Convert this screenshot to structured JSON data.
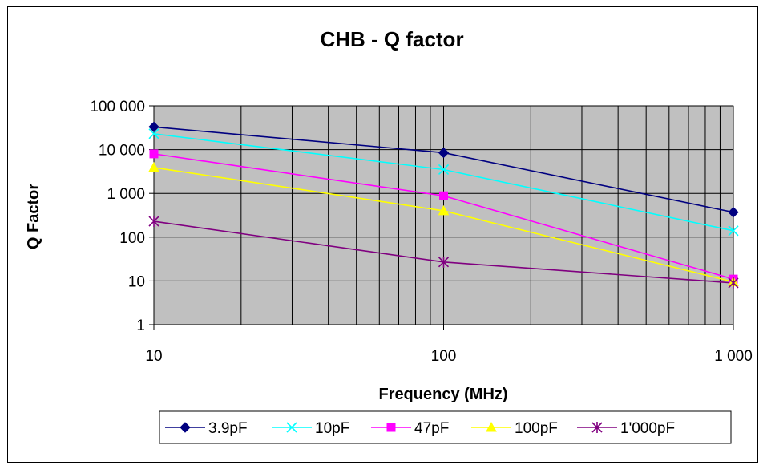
{
  "chart_data": {
    "type": "line",
    "title": "CHB - Q factor",
    "xlabel": "Frequency (MHz)",
    "ylabel": "Q Factor",
    "x_scale": "log",
    "y_scale": "log",
    "xlim": [
      10,
      1000
    ],
    "ylim": [
      1,
      100000
    ],
    "x_ticks": [
      {
        "value": 10,
        "label": "10"
      },
      {
        "value": 100,
        "label": "100"
      },
      {
        "value": 1000,
        "label": "1 000"
      }
    ],
    "y_ticks": [
      {
        "value": 1,
        "label": "1"
      },
      {
        "value": 10,
        "label": "10"
      },
      {
        "value": 100,
        "label": "100"
      },
      {
        "value": 1000,
        "label": "1 000"
      },
      {
        "value": 10000,
        "label": "10 000"
      },
      {
        "value": 100000,
        "label": "100 000"
      }
    ],
    "grid": true,
    "plot_background": "#c0c0c0",
    "legend_position": "bottom",
    "x": [
      10,
      100,
      1000
    ],
    "series": [
      {
        "name": "3.9pF",
        "color": "#000080",
        "marker": "diamond",
        "values": [
          33000,
          8500,
          370
        ]
      },
      {
        "name": "10pF",
        "color": "#00ffff",
        "marker": "x",
        "values": [
          23000,
          3500,
          140
        ]
      },
      {
        "name": "47pF",
        "color": "#ff00ff",
        "marker": "square",
        "values": [
          8000,
          880,
          11
        ]
      },
      {
        "name": "100pF",
        "color": "#ffff00",
        "marker": "triangle",
        "values": [
          3900,
          400,
          9.5
        ]
      },
      {
        "name": "1'000pF",
        "color": "#800080",
        "marker": "asterisk",
        "values": [
          230,
          27,
          9
        ]
      }
    ]
  }
}
